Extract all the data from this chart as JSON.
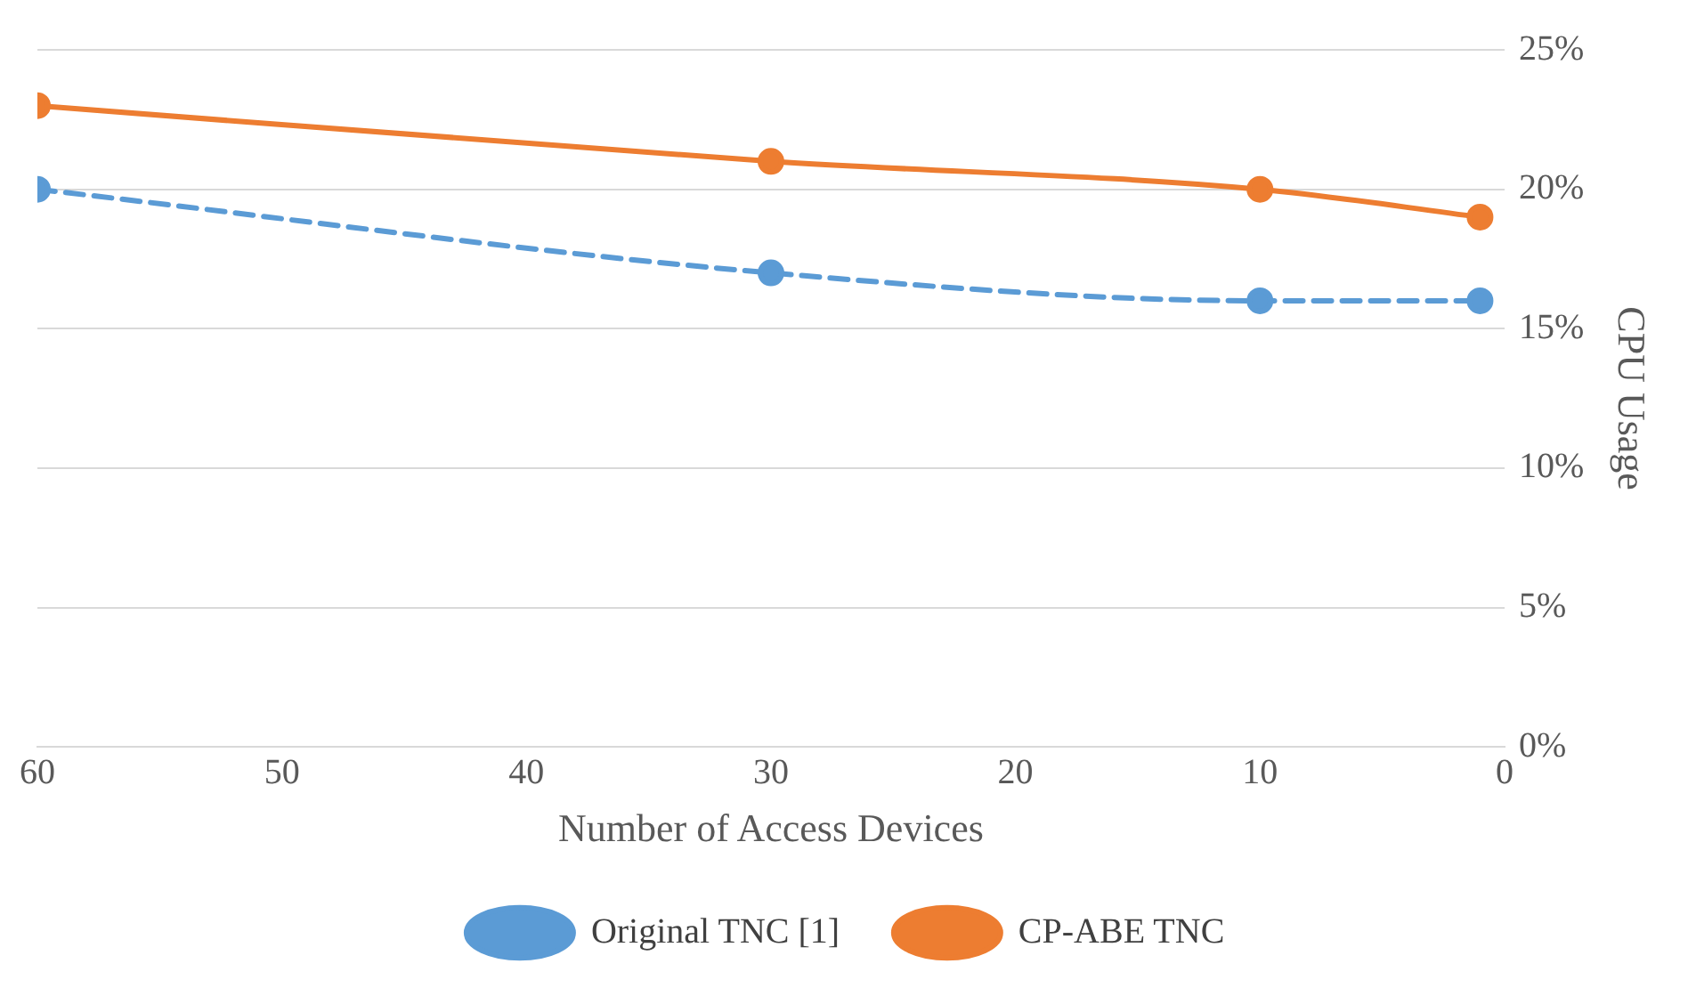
{
  "chart_data": {
    "type": "line",
    "xlabel": "Number of Access Devices",
    "ylabel": "CPU Usage",
    "xlim": [
      60,
      0
    ],
    "xticks": [
      60,
      50,
      40,
      30,
      20,
      10,
      0
    ],
    "ylim": [
      0,
      25
    ],
    "yticks": [
      {
        "value": 0,
        "label": "0%"
      },
      {
        "value": 5,
        "label": "5%"
      },
      {
        "value": 10,
        "label": "10%"
      },
      {
        "value": 15,
        "label": "15%"
      },
      {
        "value": 20,
        "label": "20%"
      },
      {
        "value": 25,
        "label": "25%"
      }
    ],
    "x": [
      60,
      30,
      10,
      1
    ],
    "grid": "y",
    "legend": "bottom",
    "marker": "circle",
    "series": [
      {
        "name": "Original TNC [1]",
        "color": "#5b9bd5",
        "values": [
          20,
          17,
          16,
          16
        ],
        "line_style": "dashed"
      },
      {
        "name": "CP-ABE TNC",
        "color": "#ed7d31",
        "values": [
          23,
          21,
          20,
          19
        ],
        "line_style": "solid"
      }
    ]
  }
}
